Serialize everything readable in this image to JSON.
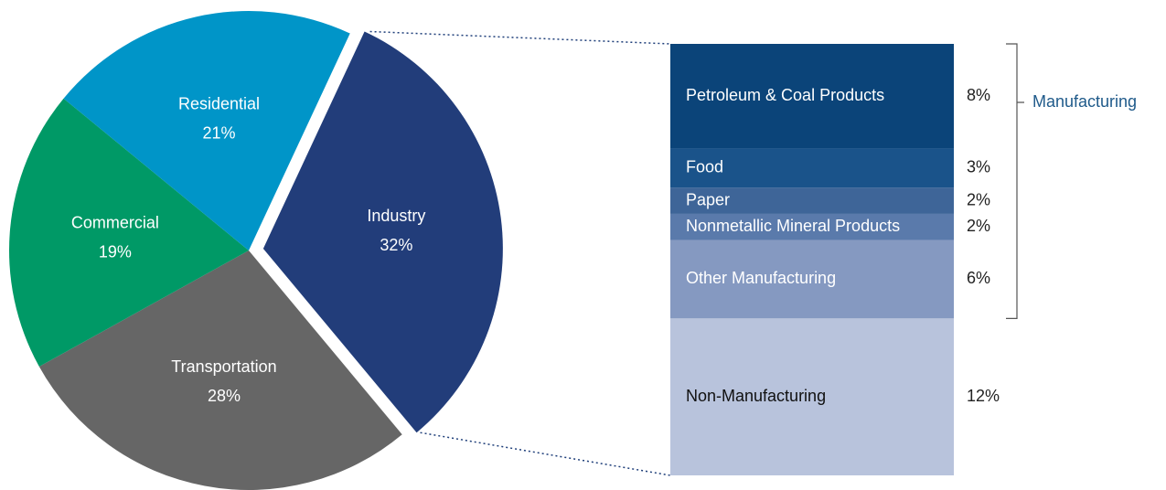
{
  "chart_data": [
    {
      "type": "pie",
      "categories": [
        "Industry",
        "Transportation",
        "Commercial",
        "Residential"
      ],
      "values": [
        32,
        28,
        19,
        21
      ],
      "value_labels": [
        "32%",
        "28%",
        "19%",
        "21%"
      ],
      "colors": [
        "#223d7a",
        "#666666",
        "#009966",
        "#0095c8"
      ]
    },
    {
      "type": "stacked-bar",
      "categories": [
        "Petroleum & Coal Products",
        "Food",
        "Paper",
        "Nonmetallic Mineral Products",
        "Other Manufacturing",
        "Non-Manufacturing"
      ],
      "values": [
        8,
        3,
        2,
        2,
        6,
        12
      ],
      "value_labels": [
        "8%",
        "3%",
        "2%",
        "2%",
        "6%",
        "12%"
      ],
      "colors": [
        "#0b4479",
        "#1a538a",
        "#3e6598",
        "#5a7aab",
        "#8599c1",
        "#b8c3dc"
      ],
      "annotation": "Manufacturing"
    }
  ]
}
